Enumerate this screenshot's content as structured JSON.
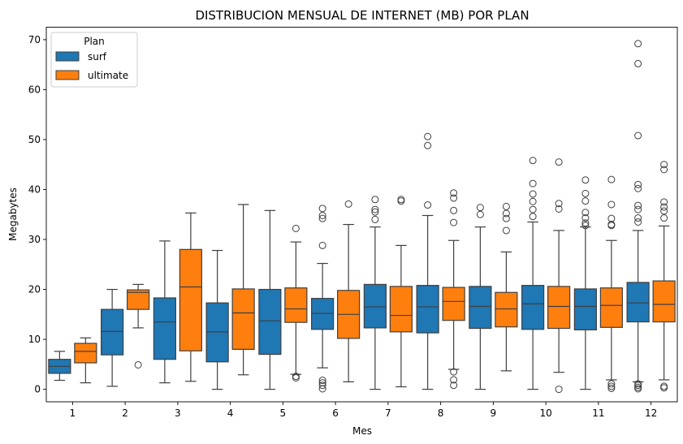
{
  "chart_data": {
    "type": "boxplot",
    "title": "DISTRIBUCION MENSUAL DE INTERNET (MB) POR PLAN",
    "xlabel": "Mes",
    "ylabel": "Megabytes",
    "ylim": [
      -2.5,
      72.5
    ],
    "yticks": [
      0,
      10,
      20,
      30,
      40,
      50,
      60,
      70
    ],
    "categories": [
      "1",
      "2",
      "3",
      "4",
      "5",
      "6",
      "7",
      "8",
      "9",
      "10",
      "11",
      "12"
    ],
    "legend": {
      "title": "Plan",
      "position": "top-left"
    },
    "series": [
      {
        "name": "surf",
        "color": "#1f77b4",
        "boxes": [
          {
            "whislo": 1.8,
            "q1": 3.2,
            "med": 4.6,
            "q3": 6.0,
            "whishi": 7.6,
            "fliers": []
          },
          {
            "whislo": 0.6,
            "q1": 6.9,
            "med": 11.6,
            "q3": 16.0,
            "whishi": 20.0,
            "fliers": []
          },
          {
            "whislo": 1.3,
            "q1": 6.0,
            "med": 13.5,
            "q3": 18.3,
            "whishi": 29.7,
            "fliers": []
          },
          {
            "whislo": 0.0,
            "q1": 5.5,
            "med": 11.5,
            "q3": 17.3,
            "whishi": 27.8,
            "fliers": []
          },
          {
            "whislo": 0.0,
            "q1": 7.0,
            "med": 13.7,
            "q3": 20.0,
            "whishi": 35.8,
            "fliers": []
          },
          {
            "whislo": 4.3,
            "q1": 12.0,
            "med": 15.2,
            "q3": 18.2,
            "whishi": 25.2,
            "fliers": [
              0.1,
              0.8,
              1.3,
              1.8,
              28.8,
              34.2,
              34.8,
              36.2
            ]
          },
          {
            "whislo": 0.0,
            "q1": 12.3,
            "med": 16.5,
            "q3": 21.0,
            "whishi": 32.5,
            "fliers": [
              34.0,
              35.5,
              36.0,
              38.0
            ]
          },
          {
            "whislo": 0.0,
            "q1": 11.3,
            "med": 16.5,
            "q3": 20.8,
            "whishi": 34.8,
            "fliers": [
              36.9,
              48.8,
              50.6
            ]
          },
          {
            "whislo": 0.0,
            "q1": 12.2,
            "med": 16.6,
            "q3": 20.6,
            "whishi": 32.5,
            "fliers": [
              35.0,
              36.4
            ]
          },
          {
            "whislo": 0.0,
            "q1": 12.0,
            "med": 17.1,
            "q3": 20.8,
            "whishi": 33.5,
            "fliers": [
              34.6,
              36.0,
              37.6,
              39.1,
              41.2,
              45.8
            ]
          },
          {
            "whislo": 0.0,
            "q1": 11.9,
            "med": 16.6,
            "q3": 20.1,
            "whishi": 32.5,
            "fliers": [
              32.8,
              33.3,
              34.3,
              35.4,
              37.7,
              39.2,
              41.9
            ]
          },
          {
            "whislo": 1.5,
            "q1": 13.5,
            "med": 17.3,
            "q3": 21.4,
            "whishi": 31.8,
            "fliers": [
              0.1,
              0.4,
              0.8,
              1.1,
              33.5,
              34.3,
              36.0,
              36.8,
              40.2,
              41.0,
              50.8,
              65.2,
              69.2
            ]
          }
        ]
      },
      {
        "name": "ultimate",
        "color": "#ff7f0e",
        "boxes": [
          {
            "whislo": 1.3,
            "q1": 5.3,
            "med": 7.6,
            "q3": 9.2,
            "whishi": 10.3,
            "fliers": []
          },
          {
            "whislo": 12.3,
            "q1": 16.0,
            "med": 19.4,
            "q3": 19.9,
            "whishi": 21.0,
            "fliers": [
              4.9
            ]
          },
          {
            "whislo": 1.6,
            "q1": 7.7,
            "med": 20.5,
            "q3": 28.0,
            "whishi": 35.3,
            "fliers": []
          },
          {
            "whislo": 2.9,
            "q1": 8.0,
            "med": 15.3,
            "q3": 20.1,
            "whishi": 37.0,
            "fliers": []
          },
          {
            "whislo": 3.0,
            "q1": 13.4,
            "med": 16.1,
            "q3": 20.3,
            "whishi": 29.5,
            "fliers": [
              2.3,
              2.6,
              32.2
            ]
          },
          {
            "whislo": 1.5,
            "q1": 10.2,
            "med": 15.0,
            "q3": 19.8,
            "whishi": 33.0,
            "fliers": [
              37.1
            ]
          },
          {
            "whislo": 0.5,
            "q1": 11.5,
            "med": 14.8,
            "q3": 20.6,
            "whishi": 28.8,
            "fliers": [
              37.7,
              38.0
            ]
          },
          {
            "whislo": 4.0,
            "q1": 13.8,
            "med": 17.6,
            "q3": 20.4,
            "whishi": 29.8,
            "fliers": [
              0.8,
              1.9,
              3.5,
              33.4,
              35.8,
              38.3,
              39.3
            ]
          },
          {
            "whislo": 3.7,
            "q1": 12.5,
            "med": 16.1,
            "q3": 19.4,
            "whishi": 27.5,
            "fliers": [
              31.8,
              34.2,
              35.2,
              36.6
            ]
          },
          {
            "whislo": 3.4,
            "q1": 12.2,
            "med": 16.6,
            "q3": 20.6,
            "whishi": 31.8,
            "fliers": [
              0.0,
              36.1,
              37.2,
              45.5
            ]
          },
          {
            "whislo": 1.9,
            "q1": 12.4,
            "med": 16.8,
            "q3": 20.3,
            "whishi": 29.8,
            "fliers": [
              0.2,
              0.6,
              1.1,
              32.8,
              33.0,
              34.2,
              37.0,
              42.0
            ]
          },
          {
            "whislo": 1.9,
            "q1": 13.5,
            "med": 17.0,
            "q3": 21.7,
            "whishi": 32.7,
            "fliers": [
              0.3,
              0.6,
              34.3,
              35.7,
              36.5,
              37.5,
              44.0,
              45.0
            ]
          }
        ]
      }
    ]
  }
}
